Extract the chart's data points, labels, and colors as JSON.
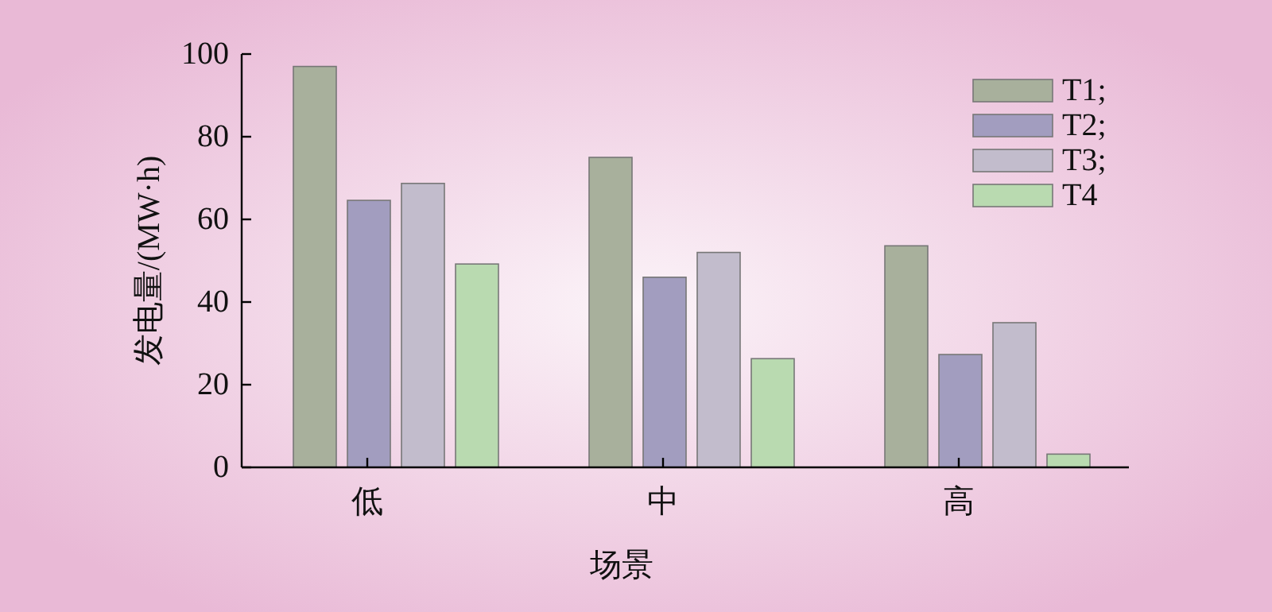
{
  "chart_data": {
    "type": "bar",
    "xlabel": "场景",
    "ylabel": "发电量/(MW·h)",
    "categories": [
      "低",
      "中",
      "高"
    ],
    "series": [
      {
        "name": "T1;",
        "color": "#a8b09c",
        "values": [
          97,
          75,
          53.6
        ]
      },
      {
        "name": "T2;",
        "color": "#a29dbf",
        "values": [
          64.6,
          46,
          27.3
        ]
      },
      {
        "name": "T3;",
        "color": "#c2bccc",
        "values": [
          68.7,
          52,
          35
        ]
      },
      {
        "name": "T4",
        "color": "#b9dab0",
        "values": [
          49.2,
          26.3,
          3.2
        ]
      }
    ],
    "ylim": [
      0,
      100
    ],
    "yticks": [
      0,
      20,
      40,
      60,
      80,
      100
    ],
    "grid": false,
    "legend": "top right"
  }
}
